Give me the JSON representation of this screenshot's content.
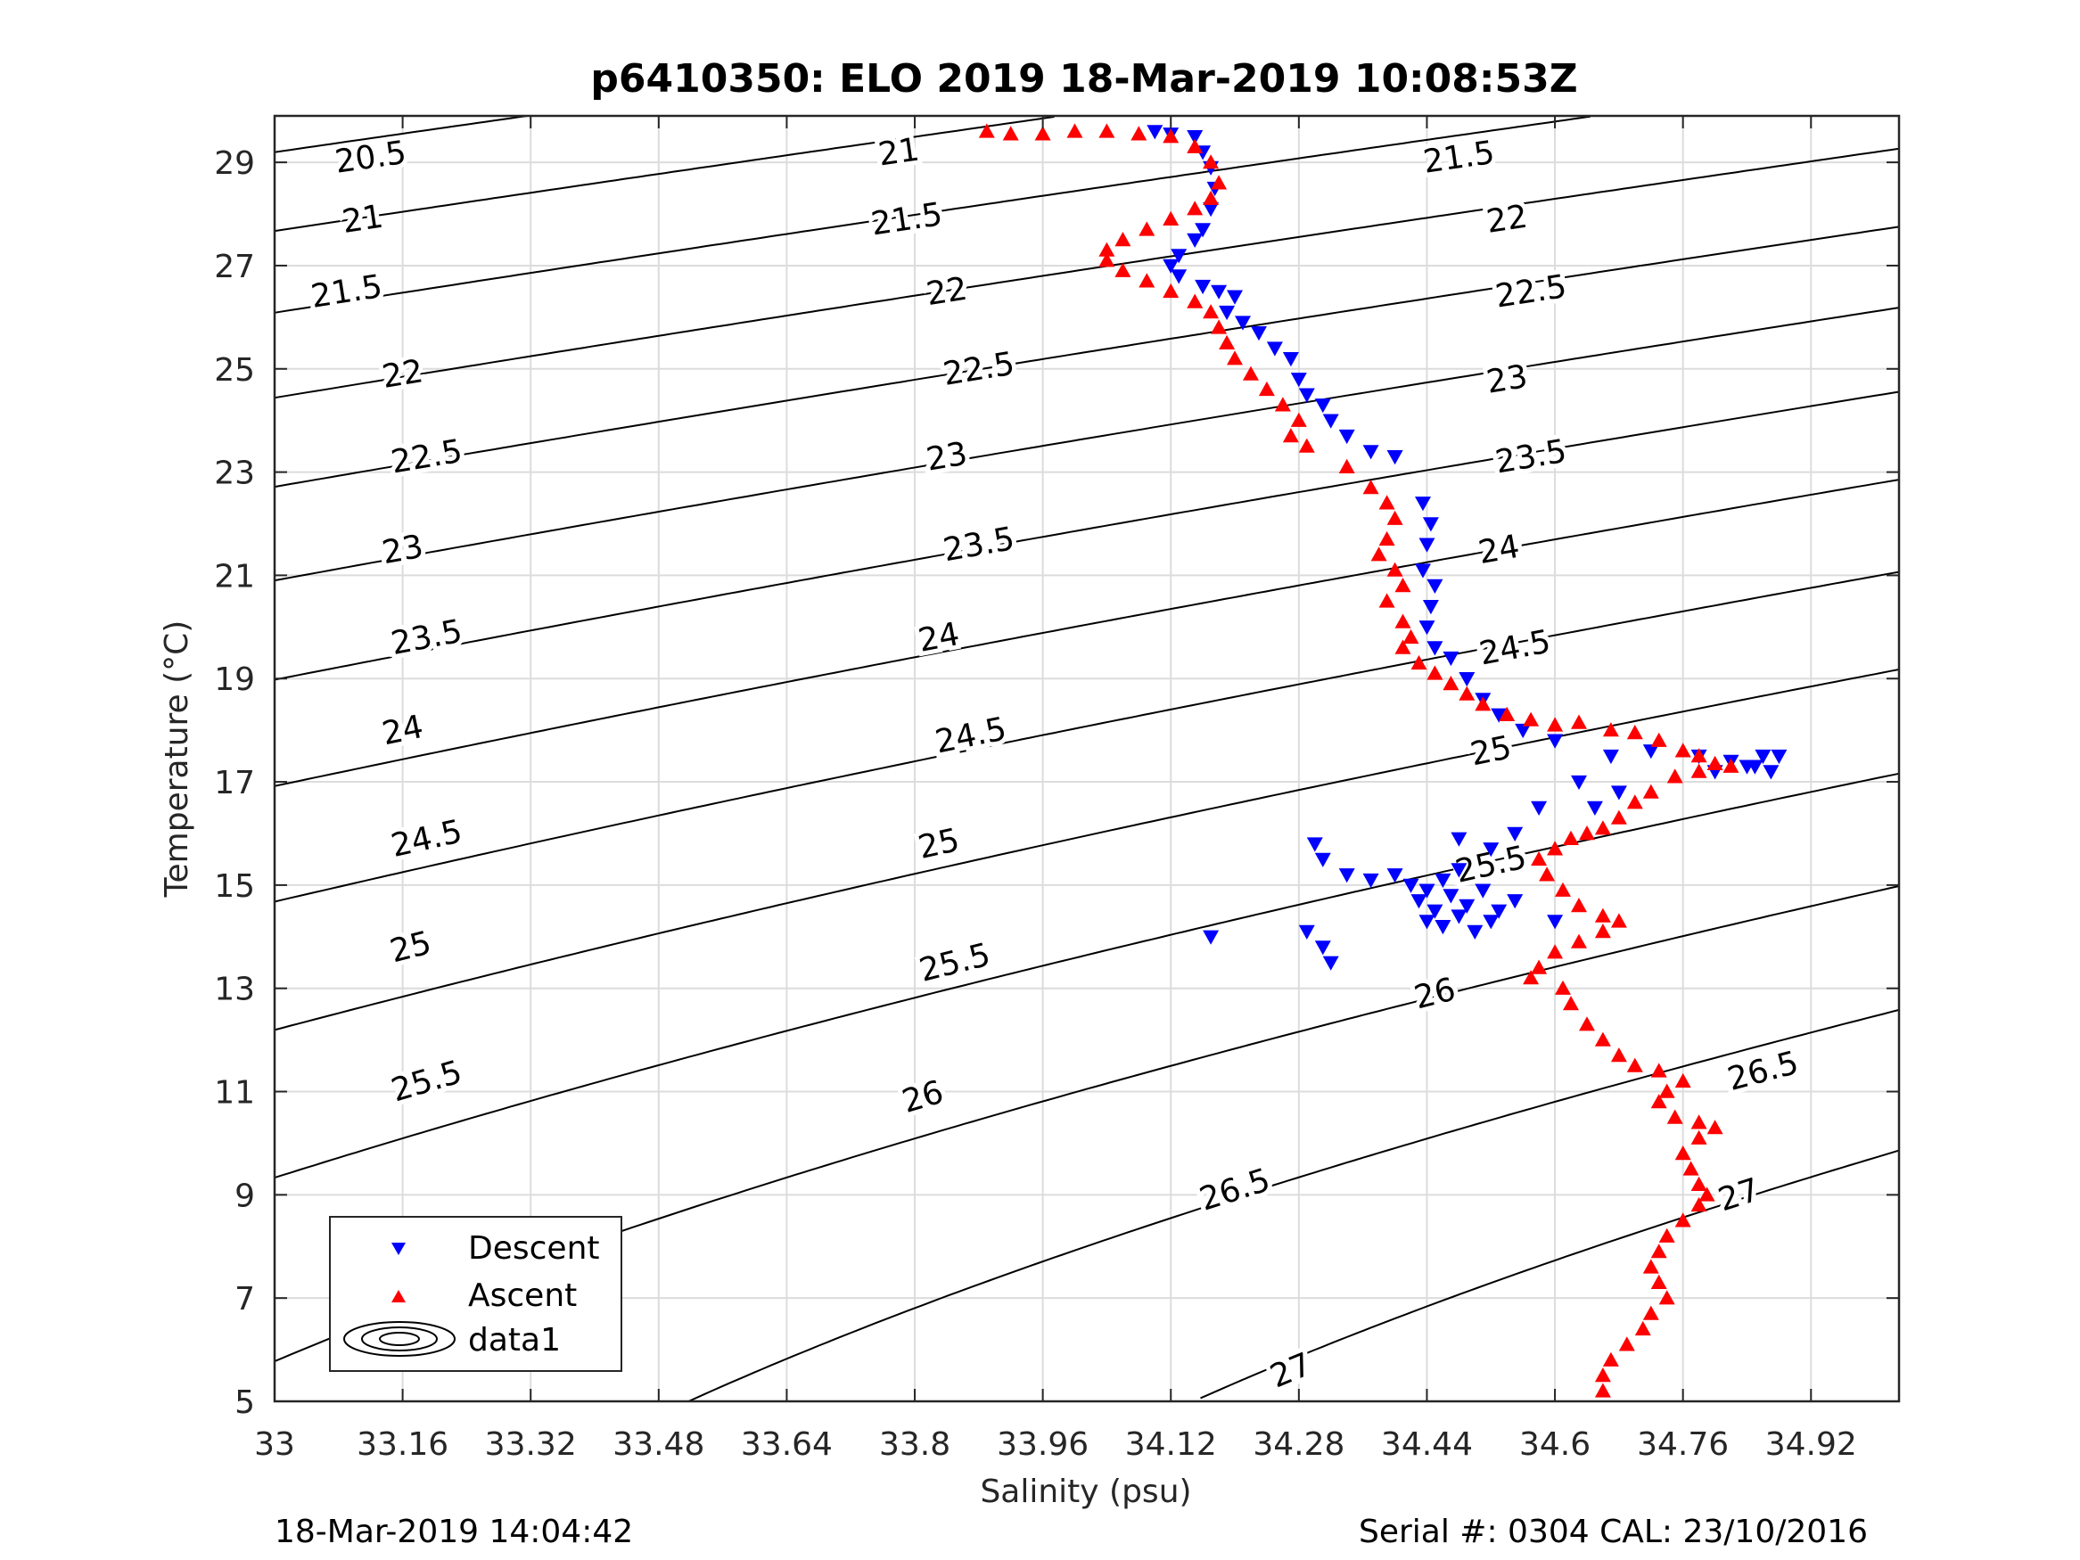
{
  "chart_data": {
    "type": "scatter",
    "title": "p6410350: ELO 2019 18-Mar-2019 10:08:53Z",
    "xlabel": "Salinity (psu)",
    "ylabel": "Temperature (°C)",
    "xlim": [
      33,
      35.03
    ],
    "ylim": [
      5,
      29.9
    ],
    "xticks": [
      33,
      33.16,
      33.32,
      33.48,
      33.64,
      33.8,
      33.96,
      34.12,
      34.28,
      34.44,
      34.6,
      34.76,
      34.92
    ],
    "xtick_labels": [
      "33",
      "33.16",
      "33.32",
      "33.48",
      "33.64",
      "33.8",
      "33.96",
      "34.12",
      "34.28",
      "34.44",
      "34.6",
      "34.76",
      "34.92"
    ],
    "yticks": [
      5,
      7,
      9,
      11,
      13,
      15,
      17,
      19,
      21,
      23,
      25,
      27,
      29
    ],
    "ytick_labels": [
      "5",
      "7",
      "9",
      "11",
      "13",
      "15",
      "17",
      "19",
      "21",
      "23",
      "25",
      "27",
      "29"
    ],
    "grid": true,
    "legend_position": "bottom-left",
    "series": [
      {
        "name": "Descent",
        "marker": "triangle-down",
        "color": "#0000ff",
        "points": [
          [
            34.1,
            29.6
          ],
          [
            34.12,
            29.55
          ],
          [
            34.15,
            29.5
          ],
          [
            34.16,
            29.2
          ],
          [
            34.17,
            28.9
          ],
          [
            34.175,
            28.5
          ],
          [
            34.17,
            28.1
          ],
          [
            34.16,
            27.7
          ],
          [
            34.15,
            27.5
          ],
          [
            34.13,
            27.2
          ],
          [
            34.12,
            27.0
          ],
          [
            34.13,
            26.8
          ],
          [
            34.16,
            26.6
          ],
          [
            34.18,
            26.5
          ],
          [
            34.2,
            26.4
          ],
          [
            34.19,
            26.1
          ],
          [
            34.21,
            25.9
          ],
          [
            34.23,
            25.7
          ],
          [
            34.25,
            25.4
          ],
          [
            34.27,
            25.2
          ],
          [
            34.28,
            24.8
          ],
          [
            34.29,
            24.5
          ],
          [
            34.31,
            24.3
          ],
          [
            34.32,
            24.0
          ],
          [
            34.34,
            23.7
          ],
          [
            34.37,
            23.4
          ],
          [
            34.4,
            23.3
          ],
          [
            34.435,
            22.4
          ],
          [
            34.445,
            22.0
          ],
          [
            34.44,
            21.6
          ],
          [
            34.435,
            21.1
          ],
          [
            34.45,
            20.8
          ],
          [
            34.445,
            20.4
          ],
          [
            34.44,
            20.0
          ],
          [
            34.45,
            19.6
          ],
          [
            34.47,
            19.4
          ],
          [
            34.49,
            19.0
          ],
          [
            34.51,
            18.6
          ],
          [
            34.53,
            18.3
          ],
          [
            34.56,
            18.0
          ],
          [
            34.6,
            17.8
          ],
          [
            34.67,
            17.5
          ],
          [
            34.72,
            17.6
          ],
          [
            34.78,
            17.5
          ],
          [
            34.82,
            17.4
          ],
          [
            34.85,
            17.3
          ],
          [
            34.87,
            17.2
          ],
          [
            34.88,
            17.5
          ],
          [
            34.86,
            17.5
          ],
          [
            34.84,
            17.3
          ],
          [
            34.8,
            17.2
          ],
          [
            34.63,
            17.0
          ],
          [
            34.58,
            16.5
          ],
          [
            34.55,
            16.0
          ],
          [
            34.68,
            16.8
          ],
          [
            34.65,
            16.5
          ],
          [
            34.3,
            15.8
          ],
          [
            34.31,
            15.5
          ],
          [
            34.34,
            15.2
          ],
          [
            34.37,
            15.1
          ],
          [
            34.4,
            15.2
          ],
          [
            34.42,
            15.0
          ],
          [
            34.44,
            14.9
          ],
          [
            34.46,
            15.1
          ],
          [
            34.48,
            15.3
          ],
          [
            34.43,
            14.7
          ],
          [
            34.45,
            14.5
          ],
          [
            34.47,
            14.8
          ],
          [
            34.49,
            14.6
          ],
          [
            34.51,
            14.9
          ],
          [
            34.53,
            14.5
          ],
          [
            34.55,
            14.7
          ],
          [
            34.44,
            14.3
          ],
          [
            34.46,
            14.2
          ],
          [
            34.48,
            14.4
          ],
          [
            34.5,
            14.1
          ],
          [
            34.52,
            14.3
          ],
          [
            34.6,
            14.3
          ],
          [
            34.52,
            15.7
          ],
          [
            34.48,
            15.9
          ],
          [
            34.29,
            14.1
          ],
          [
            34.31,
            13.8
          ],
          [
            34.32,
            13.5
          ],
          [
            34.17,
            14.0
          ]
        ]
      },
      {
        "name": "Ascent",
        "marker": "triangle-up",
        "color": "#ff0000",
        "points": [
          [
            33.89,
            29.6
          ],
          [
            33.92,
            29.55
          ],
          [
            33.96,
            29.55
          ],
          [
            34.0,
            29.6
          ],
          [
            34.04,
            29.6
          ],
          [
            34.08,
            29.55
          ],
          [
            34.12,
            29.5
          ],
          [
            34.15,
            29.3
          ],
          [
            34.17,
            29.0
          ],
          [
            34.18,
            28.6
          ],
          [
            34.17,
            28.3
          ],
          [
            34.15,
            28.1
          ],
          [
            34.12,
            27.9
          ],
          [
            34.09,
            27.7
          ],
          [
            34.06,
            27.5
          ],
          [
            34.04,
            27.3
          ],
          [
            34.04,
            27.1
          ],
          [
            34.06,
            26.9
          ],
          [
            34.09,
            26.7
          ],
          [
            34.12,
            26.5
          ],
          [
            34.15,
            26.3
          ],
          [
            34.17,
            26.1
          ],
          [
            34.18,
            25.8
          ],
          [
            34.19,
            25.5
          ],
          [
            34.2,
            25.2
          ],
          [
            34.22,
            24.9
          ],
          [
            34.24,
            24.6
          ],
          [
            34.26,
            24.3
          ],
          [
            34.28,
            24.0
          ],
          [
            34.27,
            23.7
          ],
          [
            34.29,
            23.5
          ],
          [
            34.34,
            23.1
          ],
          [
            34.37,
            22.7
          ],
          [
            34.39,
            22.4
          ],
          [
            34.4,
            22.1
          ],
          [
            34.39,
            21.7
          ],
          [
            34.38,
            21.4
          ],
          [
            34.4,
            21.1
          ],
          [
            34.41,
            20.8
          ],
          [
            34.39,
            20.5
          ],
          [
            34.41,
            20.1
          ],
          [
            34.42,
            19.8
          ],
          [
            34.41,
            19.6
          ],
          [
            34.43,
            19.3
          ],
          [
            34.45,
            19.1
          ],
          [
            34.47,
            18.9
          ],
          [
            34.49,
            18.7
          ],
          [
            34.51,
            18.5
          ],
          [
            34.54,
            18.3
          ],
          [
            34.57,
            18.2
          ],
          [
            34.6,
            18.1
          ],
          [
            34.63,
            18.15
          ],
          [
            34.67,
            18.0
          ],
          [
            34.7,
            17.95
          ],
          [
            34.73,
            17.8
          ],
          [
            34.76,
            17.6
          ],
          [
            34.78,
            17.5
          ],
          [
            34.8,
            17.35
          ],
          [
            34.82,
            17.3
          ],
          [
            34.78,
            17.2
          ],
          [
            34.75,
            17.1
          ],
          [
            34.72,
            16.8
          ],
          [
            34.7,
            16.6
          ],
          [
            34.68,
            16.3
          ],
          [
            34.66,
            16.1
          ],
          [
            34.64,
            16.0
          ],
          [
            34.62,
            15.9
          ],
          [
            34.6,
            15.7
          ],
          [
            34.58,
            15.5
          ],
          [
            34.59,
            15.2
          ],
          [
            34.61,
            14.9
          ],
          [
            34.63,
            14.6
          ],
          [
            34.66,
            14.4
          ],
          [
            34.68,
            14.3
          ],
          [
            34.66,
            14.1
          ],
          [
            34.63,
            13.9
          ],
          [
            34.6,
            13.7
          ],
          [
            34.58,
            13.4
          ],
          [
            34.57,
            13.2
          ],
          [
            34.61,
            13.0
          ],
          [
            34.62,
            12.7
          ],
          [
            34.64,
            12.3
          ],
          [
            34.66,
            12.0
          ],
          [
            34.68,
            11.7
          ],
          [
            34.7,
            11.5
          ],
          [
            34.73,
            11.4
          ],
          [
            34.76,
            11.2
          ],
          [
            34.74,
            11.0
          ],
          [
            34.73,
            10.8
          ],
          [
            34.75,
            10.5
          ],
          [
            34.78,
            10.4
          ],
          [
            34.8,
            10.3
          ],
          [
            34.78,
            10.1
          ],
          [
            34.76,
            9.8
          ],
          [
            34.77,
            9.5
          ],
          [
            34.78,
            9.2
          ],
          [
            34.79,
            9.0
          ],
          [
            34.78,
            8.8
          ],
          [
            34.76,
            8.5
          ],
          [
            34.74,
            8.2
          ],
          [
            34.73,
            7.9
          ],
          [
            34.72,
            7.6
          ],
          [
            34.73,
            7.3
          ],
          [
            34.74,
            7.0
          ],
          [
            34.72,
            6.7
          ],
          [
            34.71,
            6.4
          ],
          [
            34.69,
            6.1
          ],
          [
            34.67,
            5.8
          ],
          [
            34.66,
            5.5
          ],
          [
            34.66,
            5.2
          ]
        ]
      },
      {
        "name": "data1",
        "type": "contour",
        "levels": [
          20.5,
          21,
          21.5,
          22,
          22.5,
          23,
          23.5,
          24,
          24.5,
          25,
          25.5,
          26,
          26.5,
          27
        ],
        "contour_label_positions": [
          {
            "level": 20.5,
            "labels": [
              [
                33.12,
                29.1
              ]
            ]
          },
          {
            "level": 21,
            "labels": [
              [
                33.11,
                27.9
              ],
              [
                33.78,
                29.2
              ]
            ]
          },
          {
            "level": 21.5,
            "labels": [
              [
                33.09,
                26.5
              ],
              [
                33.79,
                27.9
              ],
              [
                34.48,
                29.1
              ]
            ]
          },
          {
            "level": 22,
            "labels": [
              [
                33.16,
                24.9
              ],
              [
                33.84,
                26.5
              ],
              [
                34.54,
                27.9
              ]
            ]
          },
          {
            "level": 22.5,
            "labels": [
              [
                33.19,
                23.3
              ],
              [
                33.88,
                25.0
              ],
              [
                34.57,
                26.5
              ]
            ]
          },
          {
            "level": 23,
            "labels": [
              [
                33.16,
                21.5
              ],
              [
                33.84,
                23.3
              ],
              [
                34.54,
                24.8
              ]
            ]
          },
          {
            "level": 23.5,
            "labels": [
              [
                33.19,
                19.8
              ],
              [
                33.88,
                21.6
              ],
              [
                34.57,
                23.3
              ]
            ]
          },
          {
            "level": 24,
            "labels": [
              [
                33.16,
                18.0
              ],
              [
                33.83,
                19.8
              ],
              [
                34.53,
                21.5
              ]
            ]
          },
          {
            "level": 24.5,
            "labels": [
              [
                33.19,
                15.9
              ],
              [
                33.87,
                17.9
              ],
              [
                34.55,
                19.6
              ]
            ]
          },
          {
            "level": 25,
            "labels": [
              [
                33.17,
                13.8
              ],
              [
                33.83,
                15.8
              ],
              [
                34.52,
                17.6
              ]
            ]
          },
          {
            "level": 25.5,
            "labels": [
              [
                33.19,
                11.2
              ],
              [
                33.85,
                13.5
              ],
              [
                34.52,
                15.4
              ]
            ]
          },
          {
            "level": 26,
            "labels": [
              [
                33.14,
                7.0
              ],
              [
                33.81,
                10.9
              ],
              [
                34.45,
                12.9
              ]
            ]
          },
          {
            "level": 26.5,
            "labels": [
              [
                34.2,
                9.1
              ],
              [
                34.86,
                11.4
              ]
            ]
          },
          {
            "level": 27,
            "labels": [
              [
                34.27,
                5.6
              ],
              [
                34.83,
                9.0
              ]
            ]
          }
        ]
      }
    ]
  },
  "footer": {
    "left": "18-Mar-2019 14:04:42",
    "right": "Serial #: 0304  CAL: 23/10/2016"
  }
}
